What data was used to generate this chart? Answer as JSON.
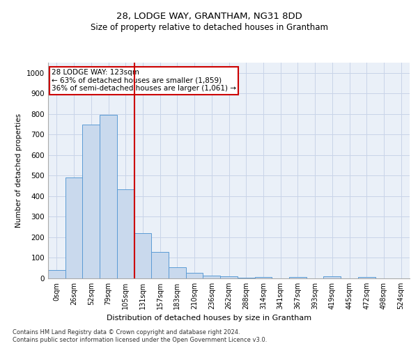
{
  "title1": "28, LODGE WAY, GRANTHAM, NG31 8DD",
  "title2": "Size of property relative to detached houses in Grantham",
  "xlabel": "Distribution of detached houses by size in Grantham",
  "ylabel": "Number of detached properties",
  "bar_labels": [
    "0sqm",
    "26sqm",
    "52sqm",
    "79sqm",
    "105sqm",
    "131sqm",
    "157sqm",
    "183sqm",
    "210sqm",
    "236sqm",
    "262sqm",
    "288sqm",
    "314sqm",
    "341sqm",
    "367sqm",
    "393sqm",
    "419sqm",
    "445sqm",
    "472sqm",
    "498sqm",
    "524sqm"
  ],
  "bar_values": [
    40,
    490,
    750,
    795,
    435,
    220,
    130,
    55,
    28,
    15,
    10,
    5,
    8,
    0,
    6,
    0,
    10,
    0,
    8,
    0,
    0
  ],
  "bar_color": "#c9d9ed",
  "bar_edge_color": "#5b9bd5",
  "vline_bar_index": 5,
  "vline_color": "#cc0000",
  "ylim": [
    0,
    1050
  ],
  "yticks": [
    0,
    100,
    200,
    300,
    400,
    500,
    600,
    700,
    800,
    900,
    1000
  ],
  "annotation_text": "28 LODGE WAY: 123sqm\n← 63% of detached houses are smaller (1,859)\n36% of semi-detached houses are larger (1,061) →",
  "annotation_box_color": "#ffffff",
  "annotation_box_edge": "#cc0000",
  "footer1": "Contains HM Land Registry data © Crown copyright and database right 2024.",
  "footer2": "Contains public sector information licensed under the Open Government Licence v3.0.",
  "grid_color": "#c8d4e8",
  "background_color": "#eaf0f8"
}
